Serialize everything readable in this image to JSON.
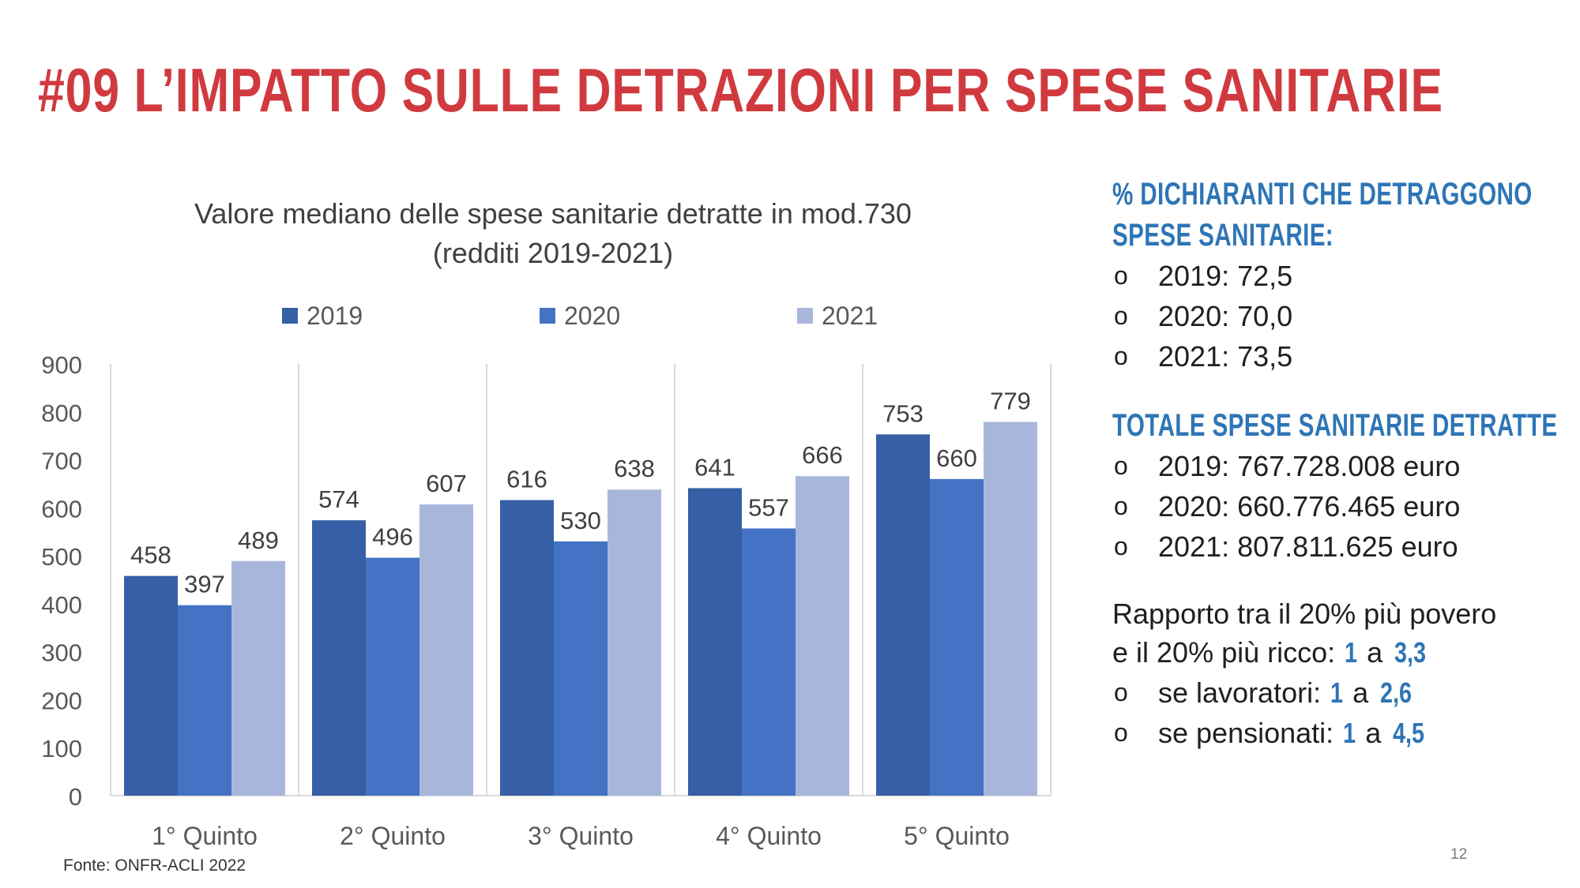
{
  "page": {
    "title": "#09 L’IMPATTO SULLE DETRAZIONI PER SPESE SANITARIE",
    "source": "Fonte: ONFR-ACLI 2022",
    "page_number": "12"
  },
  "colors": {
    "title": "#d03a3f",
    "accent": "#2e75b6",
    "series": [
      "#365fa5",
      "#4472c4",
      "#a9b6dc"
    ]
  },
  "chart_data": {
    "type": "bar",
    "title": "Valore mediano delle spese sanitarie detratte in mod.730",
    "subtitle": "(redditi 2019-2021)",
    "categories": [
      "1° Quinto",
      "2° Quinto",
      "3° Quinto",
      "4° Quinto",
      "5° Quinto"
    ],
    "series": [
      {
        "name": "2019",
        "values": [
          458,
          574,
          616,
          641,
          753
        ]
      },
      {
        "name": "2020",
        "values": [
          397,
          496,
          530,
          557,
          660
        ]
      },
      {
        "name": "2021",
        "values": [
          489,
          607,
          638,
          666,
          779
        ]
      }
    ],
    "yticks": [
      "0",
      "100",
      "200",
      "300",
      "400",
      "500",
      "600",
      "700",
      "800",
      "900"
    ],
    "ylim": [
      0,
      900
    ],
    "xlabel": "",
    "ylabel": "",
    "legend": "top",
    "grid": "vertical category separators"
  },
  "panel": {
    "section1": {
      "heading_line1": "% DICHIARANTI CHE DETRAGGONO",
      "heading_line2": "SPESE SANITARIE:",
      "bullet": "o",
      "items": [
        "2019: 72,5",
        "2020: 70,0",
        "2021: 73,5"
      ]
    },
    "section2": {
      "heading": "TOTALE SPESE SANITARIE DETRATTE",
      "bullet": "o",
      "items": [
        "2019: 767.728.008 euro",
        "2020: 660.776.465 euro",
        "2021: 807.811.625 euro"
      ]
    },
    "section3": {
      "intro_line1": "Rapporto tra il 20% più povero",
      "intro_line2_prefix": "e il 20% più ricco: ",
      "ratio_a": "1",
      "ratio_sep": " a ",
      "ratio_b": "3,3",
      "bullet": "o",
      "rows": [
        {
          "label": "se lavoratori: ",
          "a": "1",
          "sep": " a ",
          "b": "2,6"
        },
        {
          "label": "se pensionati: ",
          "a": "1",
          "sep": " a ",
          "b": "4,5"
        }
      ]
    }
  }
}
